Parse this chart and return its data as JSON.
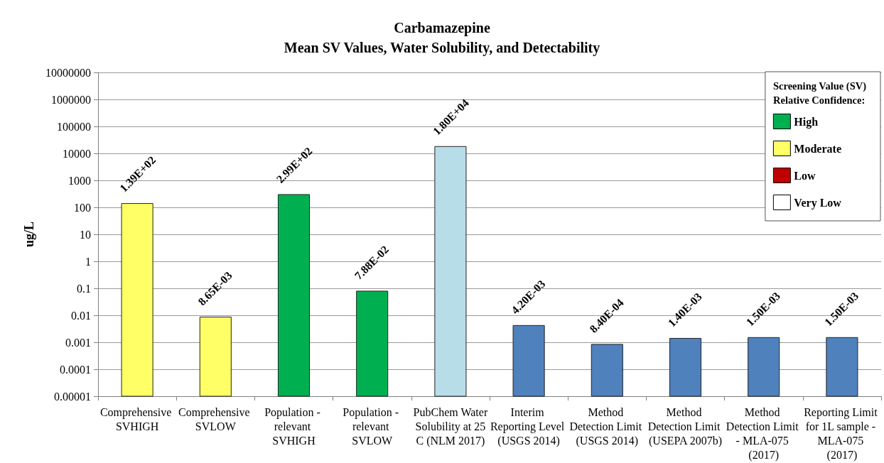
{
  "chart_data": {
    "type": "bar",
    "title": "Carbamazepine",
    "subtitle": "Mean SV Values, Water Solubility, and Detectability",
    "ylabel": "ug/L",
    "legend_title": "Screening Value (SV) Relative Confidence:",
    "categories": [
      "Comprehensive SVHIGH",
      "Comprehensive SVLOW",
      "Population - relevant SVHIGH",
      "Population - relevant SVLOW",
      "PubChem Water Solubility at 25 C (NLM 2017)",
      "Interim Reporting Level (USGS 2014)",
      "Method Detection Limit (USGS 2014)",
      "Method Detection Limit (USEPA 2007b)",
      "Method Detection Limit - MLA-075 (2017)",
      "Reporting Limit for 1L sample - MLA-075 (2017)"
    ],
    "series": [
      {
        "name": "High",
        "color": "#00b050",
        "values": [
          null,
          null,
          299,
          0.0788,
          null,
          null,
          null,
          null,
          null,
          null
        ],
        "value_labels": [
          null,
          null,
          "2.99E+02",
          "7.88E-02",
          null,
          null,
          null,
          null,
          null,
          null
        ]
      },
      {
        "name": "Moderate",
        "color": "#ffff66",
        "values": [
          139,
          0.00865,
          null,
          null,
          null,
          null,
          null,
          null,
          null,
          null
        ],
        "value_labels": [
          "1.39E+02",
          "8.65E-03",
          null,
          null,
          null,
          null,
          null,
          null,
          null,
          null
        ]
      },
      {
        "name": "Low",
        "color": "#c00000",
        "values": [
          null,
          null,
          null,
          null,
          null,
          null,
          null,
          null,
          null,
          null
        ]
      },
      {
        "name": "Very Low",
        "color": "#ffffff",
        "values": [
          null,
          null,
          null,
          null,
          null,
          null,
          null,
          null,
          null,
          null
        ]
      },
      {
        "color": "#b7dde8",
        "values": [
          null,
          null,
          null,
          null,
          18000,
          null,
          null,
          null,
          null,
          null
        ],
        "value_labels": [
          null,
          null,
          null,
          null,
          "1.80E+04",
          null,
          null,
          null,
          null,
          null
        ]
      },
      {
        "color": "#4f81bd",
        "values": [
          null,
          null,
          null,
          null,
          null,
          0.0042,
          0.00084,
          0.0014,
          0.0015,
          0.0015
        ],
        "value_labels": [
          null,
          null,
          null,
          null,
          null,
          "4.20E-03",
          "8.40E-04",
          "1.40E-03",
          "1.50E-03",
          "1.50E-03"
        ]
      }
    ],
    "log": true,
    "ylim": [
      1e-05,
      10000000
    ],
    "yticks": [
      {
        "value": 1e-05,
        "label": "0.00001"
      },
      0.0001,
      0.001,
      0.01,
      0.1,
      1,
      10,
      100,
      1000,
      10000,
      100000,
      1000000,
      10000000
    ],
    "grid": "y",
    "legend": "top right"
  }
}
